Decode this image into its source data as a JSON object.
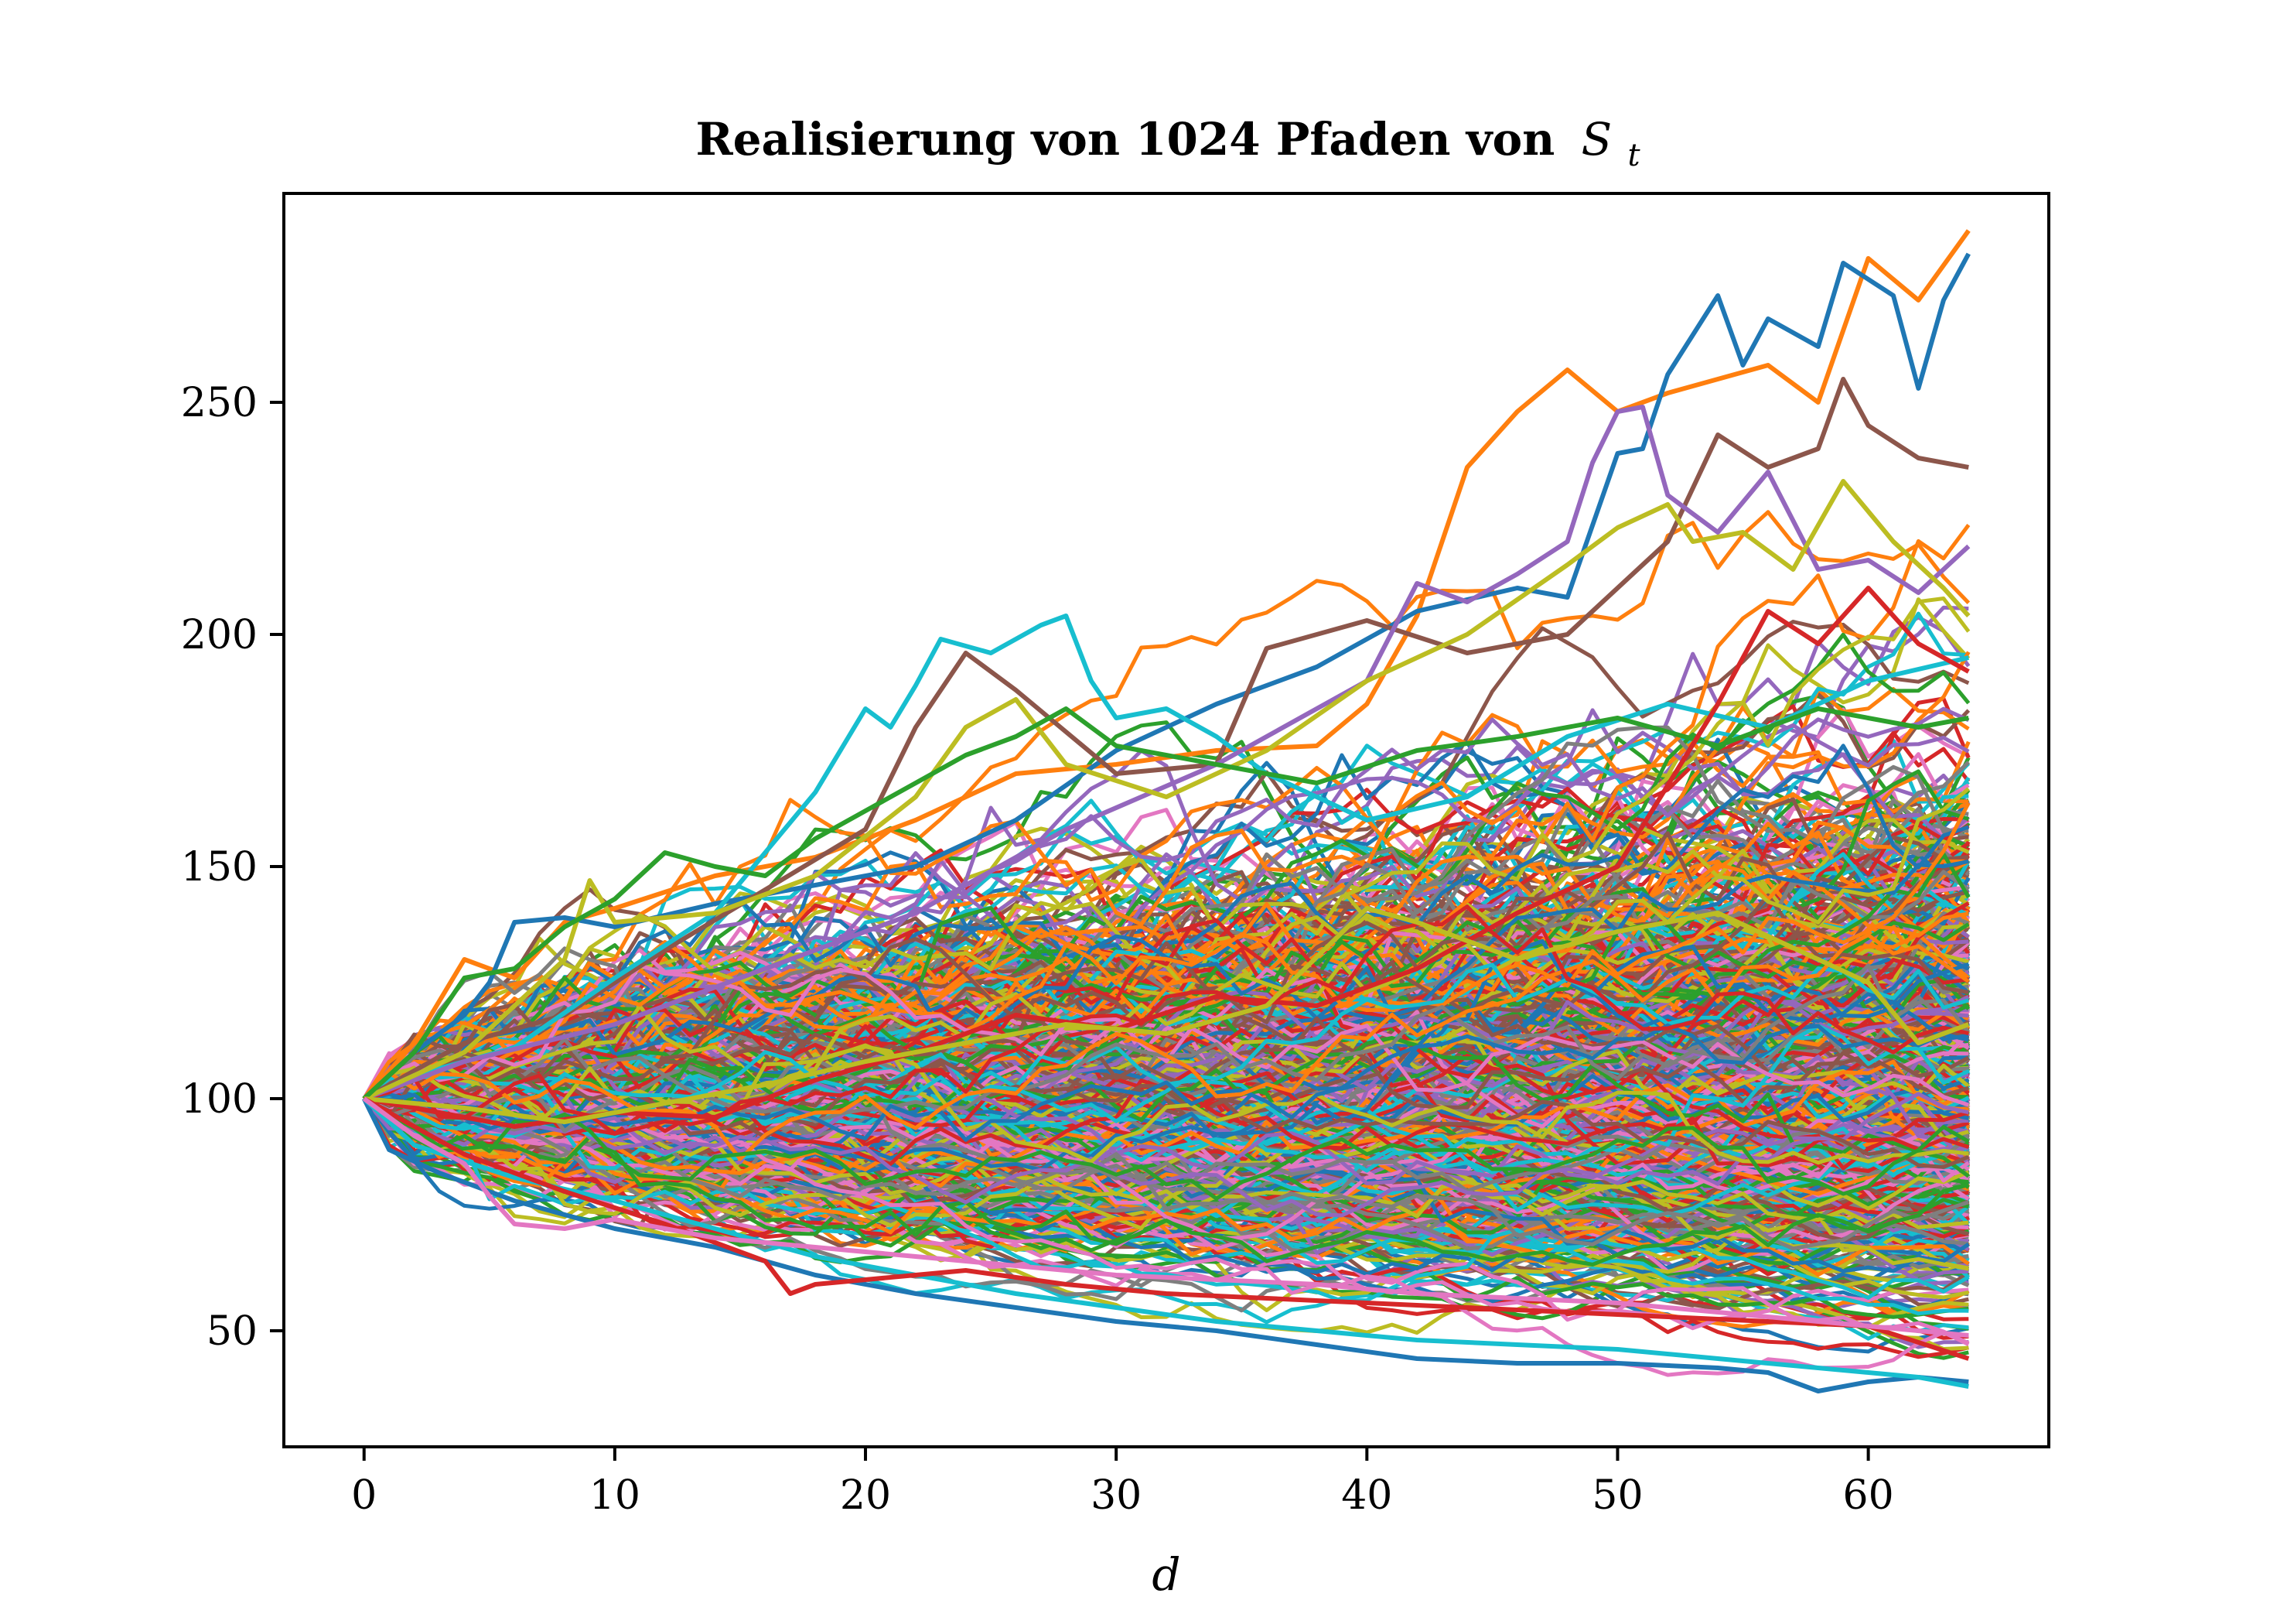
{
  "chart_data": {
    "type": "line",
    "title": "Realisierung von 1024 Pfaden von",
    "title_math": {
      "symbol": "S",
      "subscript": "t"
    },
    "xlabel": "d",
    "ylabel": "",
    "xlim": [
      -3.2,
      67.2
    ],
    "ylim": [
      25,
      295
    ],
    "xticks": [
      0,
      10,
      20,
      30,
      40,
      50,
      60
    ],
    "yticks": [
      50,
      100,
      150,
      200,
      250
    ],
    "grid": false,
    "legend": "none",
    "n_paths": 1024,
    "n_steps": 64,
    "start_value": 100,
    "palette": [
      "#1f77b4",
      "#ff7f0e",
      "#2ca02c",
      "#d62728",
      "#9467bd",
      "#8c564b",
      "#e377c2",
      "#7f7f7f",
      "#bcbd22",
      "#17becf"
    ],
    "highlighted_series": [
      {
        "name": "",
        "color": "#ff7f0e",
        "values": [
          [
            0,
            100
          ],
          [
            2,
            112
          ],
          [
            4,
            130
          ],
          [
            6,
            126
          ],
          [
            8,
            138
          ],
          [
            10,
            141
          ],
          [
            14,
            148
          ],
          [
            18,
            152
          ],
          [
            22,
            160
          ],
          [
            26,
            170
          ],
          [
            30,
            172
          ],
          [
            34,
            175
          ],
          [
            38,
            176
          ],
          [
            40,
            185
          ],
          [
            42,
            204
          ],
          [
            44,
            236
          ],
          [
            46,
            248
          ],
          [
            48,
            257
          ],
          [
            50,
            248
          ],
          [
            52,
            252
          ],
          [
            54,
            255
          ],
          [
            56,
            258
          ],
          [
            58,
            250
          ],
          [
            60,
            281
          ],
          [
            62,
            272
          ],
          [
            64,
            287
          ]
        ]
      },
      {
        "name": "",
        "color": "#1f77b4",
        "values": [
          [
            0,
            100
          ],
          [
            2,
            110
          ],
          [
            4,
            118
          ],
          [
            5,
            125
          ],
          [
            6,
            138
          ],
          [
            8,
            139
          ],
          [
            10,
            137
          ],
          [
            14,
            142
          ],
          [
            18,
            146
          ],
          [
            22,
            150
          ],
          [
            26,
            160
          ],
          [
            30,
            175
          ],
          [
            34,
            185
          ],
          [
            38,
            193
          ],
          [
            42,
            205
          ],
          [
            46,
            210
          ],
          [
            48,
            208
          ],
          [
            50,
            239
          ],
          [
            51,
            240
          ],
          [
            52,
            256
          ],
          [
            54,
            273
          ],
          [
            55,
            258
          ],
          [
            56,
            268
          ],
          [
            58,
            262
          ],
          [
            59,
            280
          ],
          [
            61,
            273
          ],
          [
            62,
            253
          ],
          [
            63,
            272
          ],
          [
            64,
            282
          ]
        ]
      },
      {
        "name": "",
        "color": "#8c564b",
        "values": [
          [
            0,
            100
          ],
          [
            4,
            112
          ],
          [
            8,
            118
          ],
          [
            12,
            132
          ],
          [
            16,
            145
          ],
          [
            20,
            158
          ],
          [
            22,
            180
          ],
          [
            24,
            196
          ],
          [
            26,
            188
          ],
          [
            30,
            170
          ],
          [
            34,
            172
          ],
          [
            36,
            197
          ],
          [
            40,
            203
          ],
          [
            44,
            196
          ],
          [
            48,
            200
          ],
          [
            52,
            220
          ],
          [
            54,
            243
          ],
          [
            56,
            236
          ],
          [
            58,
            240
          ],
          [
            59,
            255
          ],
          [
            60,
            245
          ],
          [
            62,
            238
          ],
          [
            64,
            236
          ]
        ]
      },
      {
        "name": "",
        "color": "#17becf",
        "values": [
          [
            0,
            100
          ],
          [
            2,
            105
          ],
          [
            6,
            111
          ],
          [
            10,
            126
          ],
          [
            14,
            140
          ],
          [
            18,
            166
          ],
          [
            20,
            184
          ],
          [
            21,
            180
          ],
          [
            22,
            189
          ],
          [
            23,
            199
          ],
          [
            25,
            196
          ],
          [
            27,
            202
          ],
          [
            28,
            204
          ],
          [
            29,
            190
          ],
          [
            30,
            182
          ],
          [
            32,
            184
          ],
          [
            34,
            178
          ],
          [
            36,
            170
          ],
          [
            40,
            160
          ],
          [
            44,
            165
          ],
          [
            48,
            178
          ],
          [
            52,
            185
          ],
          [
            56,
            180
          ],
          [
            60,
            190
          ],
          [
            64,
            195
          ]
        ]
      },
      {
        "name": "",
        "color": "#9467bd",
        "values": [
          [
            0,
            100
          ],
          [
            4,
            108
          ],
          [
            10,
            116
          ],
          [
            16,
            128
          ],
          [
            22,
            140
          ],
          [
            28,
            158
          ],
          [
            34,
            172
          ],
          [
            40,
            190
          ],
          [
            42,
            211
          ],
          [
            44,
            207
          ],
          [
            46,
            213
          ],
          [
            48,
            220
          ],
          [
            49,
            237
          ],
          [
            50,
            248
          ],
          [
            51,
            249
          ],
          [
            52,
            230
          ],
          [
            54,
            222
          ],
          [
            56,
            235
          ],
          [
            58,
            214
          ],
          [
            60,
            216
          ],
          [
            62,
            209
          ],
          [
            64,
            219
          ]
        ]
      },
      {
        "name": "",
        "color": "#bcbd22",
        "values": [
          [
            0,
            100
          ],
          [
            4,
            110
          ],
          [
            8,
            130
          ],
          [
            9,
            147
          ],
          [
            10,
            138
          ],
          [
            14,
            140
          ],
          [
            18,
            148
          ],
          [
            22,
            165
          ],
          [
            24,
            180
          ],
          [
            26,
            186
          ],
          [
            28,
            172
          ],
          [
            32,
            165
          ],
          [
            36,
            175
          ],
          [
            40,
            190
          ],
          [
            44,
            200
          ],
          [
            48,
            215
          ],
          [
            50,
            223
          ],
          [
            52,
            228
          ],
          [
            53,
            220
          ],
          [
            55,
            222
          ],
          [
            57,
            214
          ],
          [
            59,
            233
          ],
          [
            61,
            220
          ],
          [
            63,
            210
          ],
          [
            64,
            204
          ]
        ]
      },
      {
        "name": "",
        "color": "#2ca02c",
        "values": [
          [
            0,
            100
          ],
          [
            2,
            110
          ],
          [
            4,
            126
          ],
          [
            6,
            128
          ],
          [
            8,
            137
          ],
          [
            10,
            143
          ],
          [
            12,
            153
          ],
          [
            14,
            150
          ],
          [
            16,
            148
          ],
          [
            18,
            156
          ],
          [
            20,
            162
          ],
          [
            22,
            168
          ],
          [
            24,
            174
          ],
          [
            26,
            178
          ],
          [
            28,
            184
          ],
          [
            30,
            176
          ],
          [
            34,
            172
          ],
          [
            38,
            168
          ],
          [
            42,
            175
          ],
          [
            46,
            178
          ],
          [
            50,
            182
          ],
          [
            54,
            176
          ],
          [
            58,
            184
          ],
          [
            62,
            180
          ],
          [
            64,
            182
          ]
        ]
      },
      {
        "name": "",
        "color": "#d62728",
        "values": [
          [
            0,
            100
          ],
          [
            2,
            98
          ],
          [
            6,
            94
          ],
          [
            10,
            97
          ],
          [
            14,
            96
          ],
          [
            18,
            104
          ],
          [
            22,
            110
          ],
          [
            26,
            118
          ],
          [
            30,
            115
          ],
          [
            34,
            122
          ],
          [
            38,
            120
          ],
          [
            42,
            128
          ],
          [
            46,
            140
          ],
          [
            50,
            150
          ],
          [
            54,
            185
          ],
          [
            56,
            205
          ],
          [
            58,
            198
          ],
          [
            60,
            210
          ],
          [
            62,
            198
          ],
          [
            64,
            192
          ]
        ]
      },
      {
        "name": "",
        "color": "#bcbd22",
        "values": [
          [
            0,
            100
          ],
          [
            4,
            98
          ],
          [
            8,
            95
          ],
          [
            12,
            99
          ],
          [
            16,
            103
          ],
          [
            20,
            108
          ],
          [
            24,
            112
          ],
          [
            28,
            116
          ],
          [
            32,
            114
          ],
          [
            36,
            120
          ],
          [
            40,
            141
          ],
          [
            42,
            138
          ],
          [
            46,
            130
          ],
          [
            50,
            136
          ],
          [
            54,
            140
          ],
          [
            58,
            130
          ],
          [
            60,
            125
          ],
          [
            62,
            112
          ],
          [
            64,
            116
          ]
        ]
      },
      {
        "name": "",
        "color": "#1f77b4",
        "values": [
          [
            0,
            100
          ],
          [
            1,
            89
          ],
          [
            3,
            84
          ],
          [
            6,
            78
          ],
          [
            10,
            72
          ],
          [
            14,
            68
          ],
          [
            18,
            62
          ],
          [
            22,
            58
          ],
          [
            26,
            55
          ],
          [
            30,
            52
          ],
          [
            34,
            50
          ],
          [
            38,
            47
          ],
          [
            42,
            44
          ],
          [
            46,
            43
          ],
          [
            50,
            43
          ],
          [
            54,
            42
          ],
          [
            56,
            41
          ],
          [
            58,
            37
          ],
          [
            60,
            39
          ],
          [
            62,
            40
          ],
          [
            64,
            39
          ]
        ]
      },
      {
        "name": "",
        "color": "#17becf",
        "values": [
          [
            0,
            100
          ],
          [
            2,
            90
          ],
          [
            6,
            83
          ],
          [
            10,
            78
          ],
          [
            14,
            72
          ],
          [
            18,
            66
          ],
          [
            22,
            62
          ],
          [
            26,
            58
          ],
          [
            30,
            55
          ],
          [
            34,
            52
          ],
          [
            38,
            50
          ],
          [
            42,
            48
          ],
          [
            46,
            47
          ],
          [
            50,
            46
          ],
          [
            54,
            44
          ],
          [
            58,
            42
          ],
          [
            62,
            40
          ],
          [
            64,
            38
          ]
        ]
      },
      {
        "name": "",
        "color": "#d62728",
        "values": [
          [
            0,
            100
          ],
          [
            2,
            94
          ],
          [
            4,
            88
          ],
          [
            8,
            80
          ],
          [
            12,
            73
          ],
          [
            16,
            65
          ],
          [
            17,
            58
          ],
          [
            18,
            60
          ],
          [
            20,
            61
          ],
          [
            24,
            63
          ],
          [
            28,
            60
          ],
          [
            32,
            58
          ],
          [
            36,
            57
          ],
          [
            40,
            56
          ],
          [
            44,
            55
          ],
          [
            48,
            54
          ],
          [
            52,
            53
          ],
          [
            56,
            52
          ],
          [
            60,
            51
          ],
          [
            64,
            44
          ]
        ]
      },
      {
        "name": "",
        "color": "#e377c2",
        "values": [
          [
            0,
            100
          ],
          [
            2,
            92
          ],
          [
            4,
            86
          ],
          [
            5,
            79
          ],
          [
            6,
            73
          ],
          [
            8,
            72
          ],
          [
            10,
            74
          ],
          [
            14,
            70
          ],
          [
            18,
            68
          ],
          [
            22,
            66
          ],
          [
            26,
            64
          ],
          [
            30,
            62
          ],
          [
            34,
            61
          ],
          [
            38,
            60
          ],
          [
            42,
            58
          ],
          [
            46,
            57
          ],
          [
            50,
            56
          ],
          [
            54,
            54
          ],
          [
            58,
            52
          ],
          [
            62,
            50
          ],
          [
            64,
            49
          ]
        ]
      }
    ]
  }
}
